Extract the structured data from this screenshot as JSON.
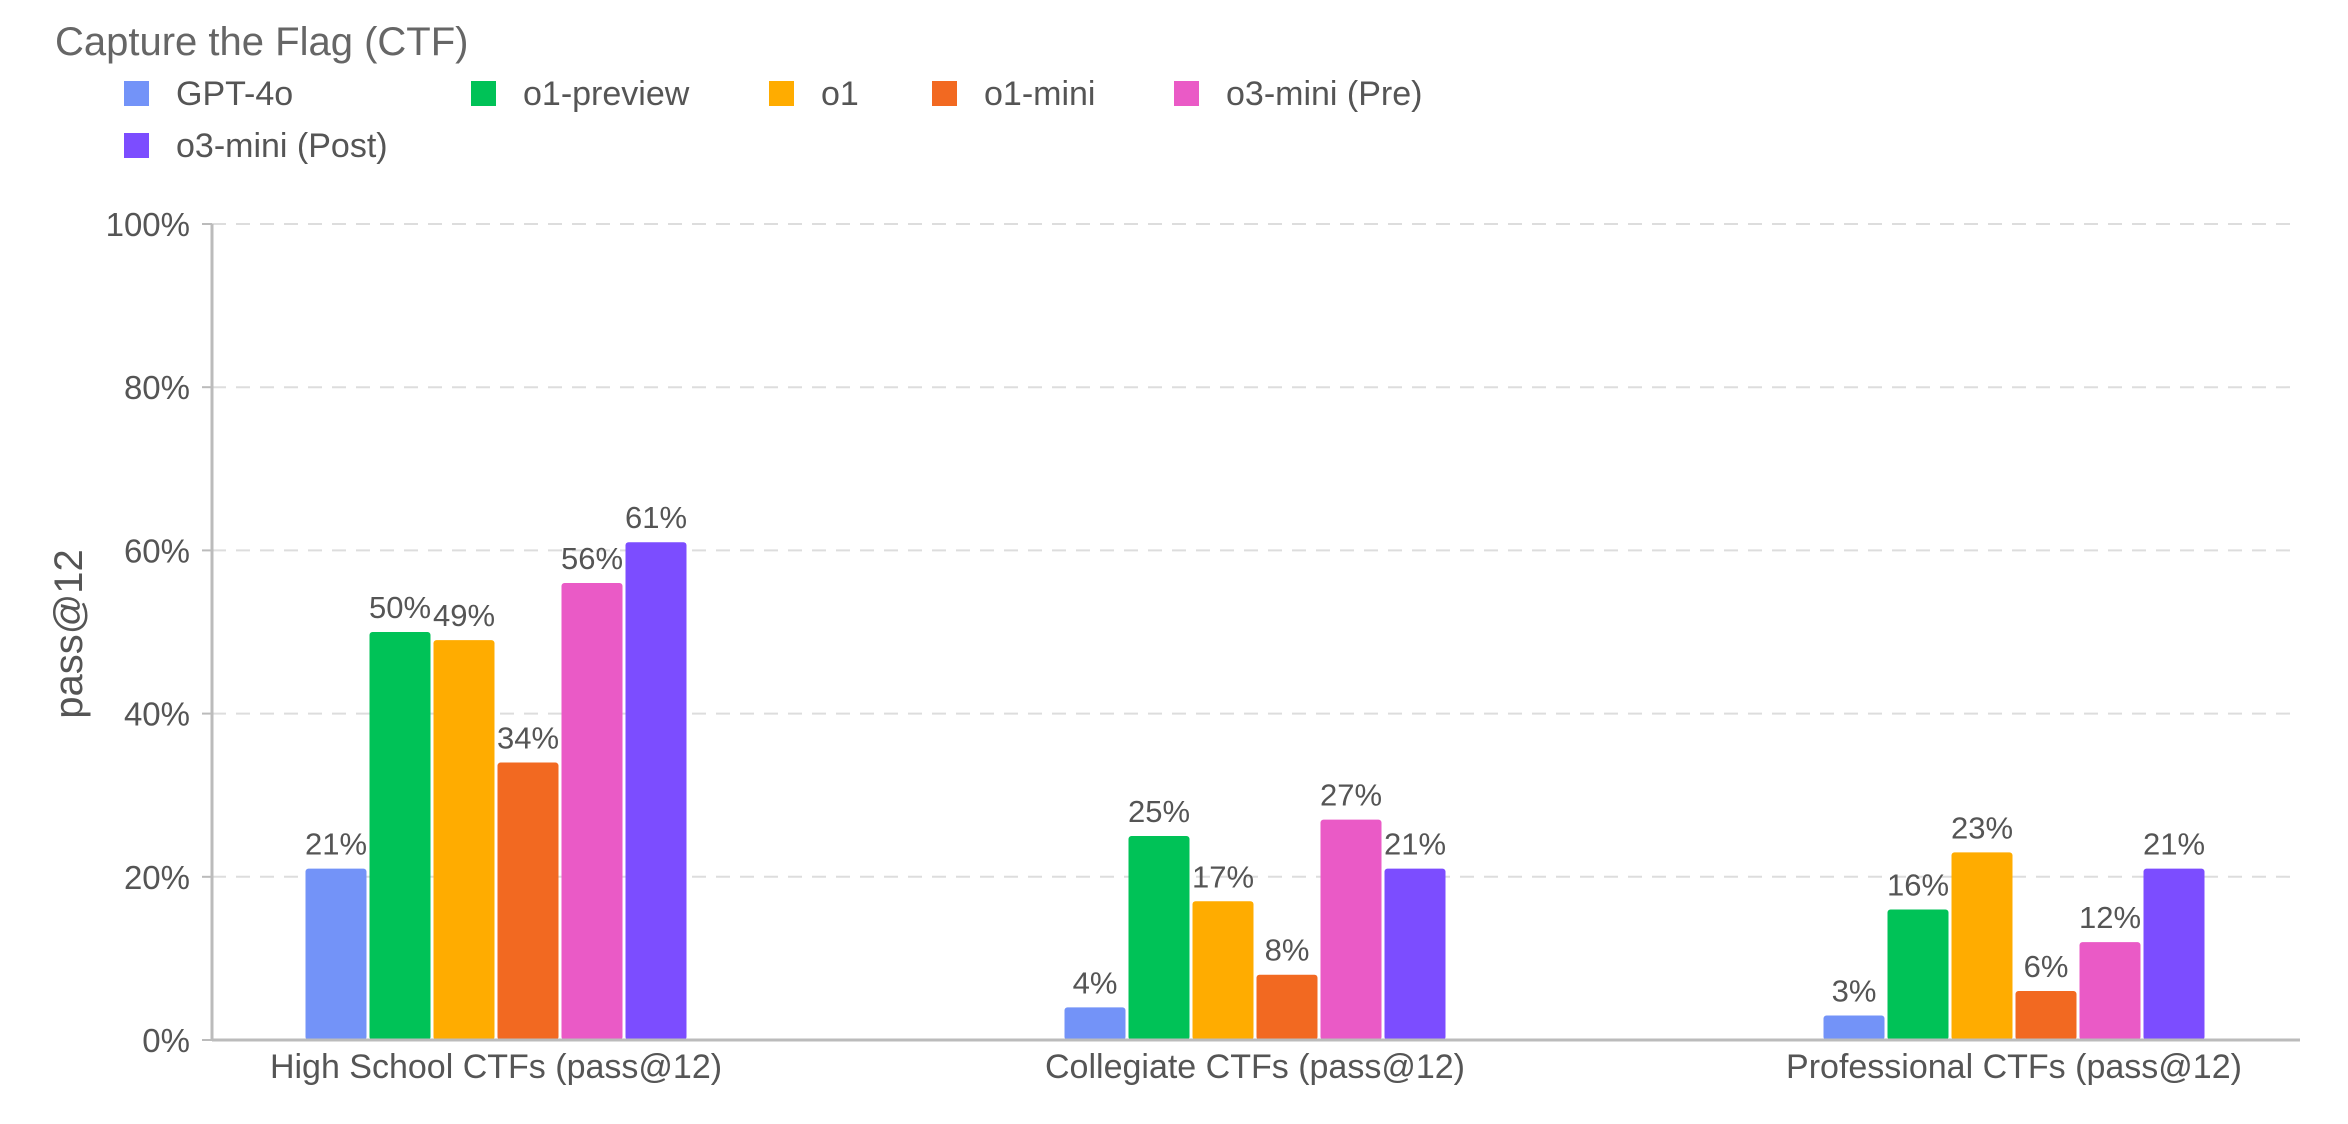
{
  "chart_data": {
    "type": "bar",
    "title": "Capture the Flag (CTF)",
    "ylabel": "pass@12",
    "xlabel": "",
    "ylim": [
      0,
      100
    ],
    "yticks": [
      0,
      20,
      40,
      60,
      80,
      100
    ],
    "ytick_labels": [
      "0%",
      "20%",
      "40%",
      "60%",
      "80%",
      "100%"
    ],
    "grid": "horizontal dashed",
    "legend_position": "top-left",
    "categories": [
      "High School CTFs (pass@12)",
      "Collegiate CTFs (pass@12)",
      "Professional CTFs (pass@12)"
    ],
    "series": [
      {
        "name": "GPT-4o",
        "color": "#7393F8",
        "values": [
          21,
          4,
          3
        ],
        "labels": [
          "21%",
          "4%",
          "3%"
        ]
      },
      {
        "name": "o1-preview",
        "color": "#00C257",
        "values": [
          50,
          25,
          16
        ],
        "labels": [
          "50%",
          "25%",
          "16%"
        ]
      },
      {
        "name": "o1",
        "color": "#FFAC00",
        "values": [
          49,
          17,
          23
        ],
        "labels": [
          "49%",
          "17%",
          "23%"
        ]
      },
      {
        "name": "o1-mini",
        "color": "#F26921",
        "values": [
          34,
          8,
          6
        ],
        "labels": [
          "34%",
          "8%",
          "6%"
        ]
      },
      {
        "name": "o3-mini (Pre)",
        "color": "#EA5AC6",
        "values": [
          56,
          27,
          12
        ],
        "labels": [
          "56%",
          "27%",
          "12%"
        ]
      },
      {
        "name": "o3-mini (Post)",
        "color": "#7C4DFF",
        "values": [
          61,
          21,
          21
        ],
        "labels": [
          "61%",
          "21%",
          "21%"
        ]
      }
    ]
  }
}
